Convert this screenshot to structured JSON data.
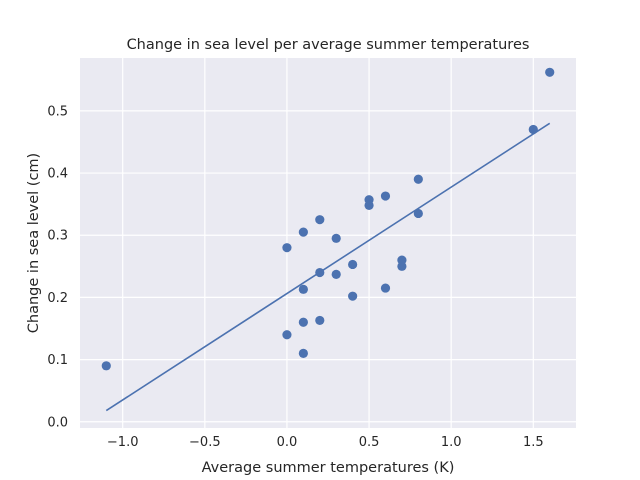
{
  "chart_data": {
    "type": "scatter",
    "title": "Change in sea level per average summer temperatures",
    "xlabel": "Average summer temperatures (K)",
    "ylabel": "Change in sea level (cm)",
    "xlim": [
      -1.26,
      1.76
    ],
    "ylim": [
      -0.01,
      0.585
    ],
    "xticks": [
      -1.0,
      -0.5,
      0.0,
      0.5,
      1.0,
      1.5
    ],
    "xtick_labels": [
      "−1.0",
      "−0.5",
      "0.0",
      "0.5",
      "1.0",
      "1.5"
    ],
    "yticks": [
      0.0,
      0.1,
      0.2,
      0.3,
      0.4,
      0.5
    ],
    "ytick_labels": [
      "0.0",
      "0.1",
      "0.2",
      "0.3",
      "0.4",
      "0.5"
    ],
    "grid": true,
    "background_color": "#EAEAF2",
    "point_color": "#4C72B0",
    "points": [
      {
        "x": -1.1,
        "y": 0.09
      },
      {
        "x": 0.0,
        "y": 0.28
      },
      {
        "x": 0.0,
        "y": 0.14
      },
      {
        "x": 0.1,
        "y": 0.305
      },
      {
        "x": 0.1,
        "y": 0.213
      },
      {
        "x": 0.1,
        "y": 0.16
      },
      {
        "x": 0.1,
        "y": 0.11
      },
      {
        "x": 0.2,
        "y": 0.325
      },
      {
        "x": 0.2,
        "y": 0.24
      },
      {
        "x": 0.2,
        "y": 0.163
      },
      {
        "x": 0.3,
        "y": 0.295
      },
      {
        "x": 0.3,
        "y": 0.237
      },
      {
        "x": 0.4,
        "y": 0.253
      },
      {
        "x": 0.4,
        "y": 0.202
      },
      {
        "x": 0.5,
        "y": 0.357
      },
      {
        "x": 0.5,
        "y": 0.348
      },
      {
        "x": 0.6,
        "y": 0.363
      },
      {
        "x": 0.6,
        "y": 0.215
      },
      {
        "x": 0.7,
        "y": 0.26
      },
      {
        "x": 0.7,
        "y": 0.25
      },
      {
        "x": 0.8,
        "y": 0.39
      },
      {
        "x": 0.8,
        "y": 0.335
      },
      {
        "x": 1.5,
        "y": 0.47
      },
      {
        "x": 1.6,
        "y": 0.562
      }
    ],
    "fit_line": {
      "x": [
        -1.1,
        1.6
      ],
      "y": [
        0.018,
        0.48
      ]
    }
  }
}
